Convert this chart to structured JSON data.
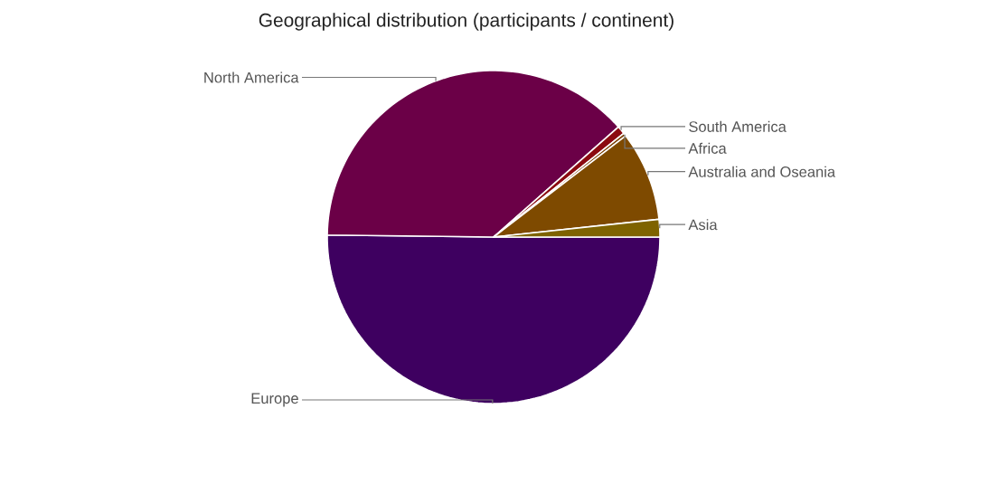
{
  "chart_data": {
    "type": "pie",
    "title": "Geographical distribution (participants / continent)",
    "categories": [
      "Europe",
      "North America",
      "South America",
      "Africa",
      "Australia and Oseania",
      "Asia"
    ],
    "values": [
      50.2,
      38.3,
      0.8,
      0.3,
      8.7,
      1.7
    ],
    "colors": [
      "#3e0060",
      "#6b0047",
      "#8b0a10",
      "#7a3d00",
      "#7e4a00",
      "#7e6300"
    ]
  }
}
